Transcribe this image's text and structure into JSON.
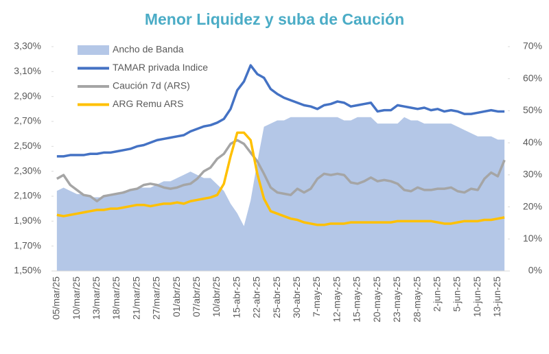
{
  "chart_data": {
    "type": "line",
    "title": "Menor Liquidez y suba de Caución",
    "categories": [
      "05/mar/25",
      null,
      null,
      "10/mar/25",
      null,
      null,
      "13/mar/25",
      null,
      null,
      "18/mar/25",
      null,
      null,
      "21/mar/25",
      null,
      null,
      "27/mar/25",
      null,
      null,
      "01/abr/25",
      null,
      null,
      "07/abr/25",
      null,
      null,
      "10/abr/25",
      null,
      null,
      "15-abr-25",
      null,
      null,
      "22-abr-25",
      null,
      null,
      "25-abr-25",
      null,
      null,
      "30-abr-25",
      null,
      null,
      "7-may-25",
      null,
      null,
      "12-may-25",
      null,
      null,
      "15-may-25",
      null,
      null,
      "20-may-25",
      null,
      null,
      "23-may-25",
      null,
      null,
      "28-may-25",
      null,
      null,
      "2-jun-25",
      null,
      null,
      "5-jun-25",
      null,
      null,
      "10-jun-25",
      null,
      null,
      "13-jun-25",
      null
    ],
    "series": [
      {
        "name": "Ancho de Banda",
        "type": "area",
        "axis": "y2",
        "color": "#b4c7e7",
        "values": [
          25,
          26,
          25,
          24,
          24,
          23,
          23,
          23,
          24,
          24,
          25,
          25,
          26,
          26,
          26,
          27,
          28,
          28,
          29,
          30,
          31,
          30,
          29,
          29,
          27,
          25,
          21,
          18,
          14,
          22,
          34,
          45,
          46,
          47,
          47,
          48,
          48,
          48,
          48,
          48,
          48,
          48,
          48,
          47,
          47,
          48,
          48,
          48,
          46,
          46,
          46,
          46,
          48,
          47,
          47,
          46,
          46,
          46,
          46,
          46,
          45,
          44,
          43,
          42,
          42,
          42,
          41,
          41
        ]
      },
      {
        "name": "TAMAR privada Indice",
        "type": "line",
        "color": "#4472c4",
        "values": [
          2.42,
          2.42,
          2.43,
          2.43,
          2.43,
          2.44,
          2.44,
          2.45,
          2.45,
          2.46,
          2.47,
          2.48,
          2.5,
          2.51,
          2.53,
          2.55,
          2.56,
          2.57,
          2.58,
          2.59,
          2.62,
          2.64,
          2.66,
          2.67,
          2.69,
          2.72,
          2.8,
          2.95,
          3.02,
          3.15,
          3.08,
          3.05,
          2.96,
          2.92,
          2.89,
          2.87,
          2.85,
          2.83,
          2.82,
          2.8,
          2.83,
          2.84,
          2.86,
          2.85,
          2.82,
          2.83,
          2.84,
          2.85,
          2.78,
          2.79,
          2.79,
          2.83,
          2.82,
          2.81,
          2.8,
          2.81,
          2.79,
          2.8,
          2.78,
          2.79,
          2.78,
          2.76,
          2.76,
          2.77,
          2.78,
          2.79,
          2.78,
          2.78
        ]
      },
      {
        "name": "Caución 7d (ARS)",
        "type": "line",
        "color": "#a5a5a5",
        "values": [
          2.24,
          2.27,
          2.19,
          2.15,
          2.11,
          2.1,
          2.06,
          2.1,
          2.11,
          2.12,
          2.13,
          2.15,
          2.16,
          2.19,
          2.2,
          2.19,
          2.17,
          2.16,
          2.17,
          2.19,
          2.2,
          2.24,
          2.3,
          2.33,
          2.4,
          2.44,
          2.52,
          2.55,
          2.52,
          2.45,
          2.38,
          2.28,
          2.17,
          2.13,
          2.12,
          2.11,
          2.16,
          2.13,
          2.16,
          2.24,
          2.28,
          2.27,
          2.28,
          2.27,
          2.21,
          2.2,
          2.22,
          2.25,
          2.22,
          2.23,
          2.22,
          2.2,
          2.15,
          2.14,
          2.17,
          2.15,
          2.15,
          2.16,
          2.16,
          2.17,
          2.14,
          2.13,
          2.16,
          2.15,
          2.24,
          2.29,
          2.26,
          2.39
        ]
      },
      {
        "name": "ARG Remu ARS",
        "type": "line",
        "color": "#ffc000",
        "values": [
          1.95,
          1.94,
          1.95,
          1.96,
          1.97,
          1.98,
          1.99,
          1.99,
          2.0,
          2.0,
          2.01,
          2.02,
          2.03,
          2.03,
          2.02,
          2.03,
          2.04,
          2.04,
          2.05,
          2.04,
          2.06,
          2.07,
          2.08,
          2.09,
          2.11,
          2.2,
          2.42,
          2.61,
          2.61,
          2.55,
          2.28,
          2.08,
          1.98,
          1.96,
          1.94,
          1.92,
          1.91,
          1.89,
          1.88,
          1.87,
          1.87,
          1.88,
          1.88,
          1.88,
          1.89,
          1.89,
          1.89,
          1.89,
          1.89,
          1.89,
          1.89,
          1.9,
          1.9,
          1.9,
          1.9,
          1.9,
          1.9,
          1.89,
          1.88,
          1.88,
          1.89,
          1.9,
          1.9,
          1.9,
          1.91,
          1.91,
          1.92,
          1.93
        ]
      }
    ],
    "ylim": [
      1.5,
      3.3
    ],
    "yticks": [
      {
        "value": 1.5,
        "label": "1,50%"
      },
      {
        "value": 1.7,
        "label": "1,70%"
      },
      {
        "value": 1.9,
        "label": "1,90%"
      },
      {
        "value": 2.1,
        "label": "2,10%"
      },
      {
        "value": 2.3,
        "label": "2,30%"
      },
      {
        "value": 2.5,
        "label": "2,50%"
      },
      {
        "value": 2.7,
        "label": "2,70%"
      },
      {
        "value": 2.9,
        "label": "2,90%"
      },
      {
        "value": 3.1,
        "label": "3,10%"
      },
      {
        "value": 3.3,
        "label": "3,30%"
      }
    ],
    "y2lim": [
      0,
      70
    ],
    "y2ticks": [
      {
        "value": 0,
        "label": "0%"
      },
      {
        "value": 10,
        "label": "10%"
      },
      {
        "value": 20,
        "label": "20%"
      },
      {
        "value": 30,
        "label": "30%"
      },
      {
        "value": 40,
        "label": "40%"
      },
      {
        "value": 50,
        "label": "50%"
      },
      {
        "value": 60,
        "label": "60%"
      },
      {
        "value": 70,
        "label": "70%"
      }
    ],
    "legend": "top-left"
  }
}
